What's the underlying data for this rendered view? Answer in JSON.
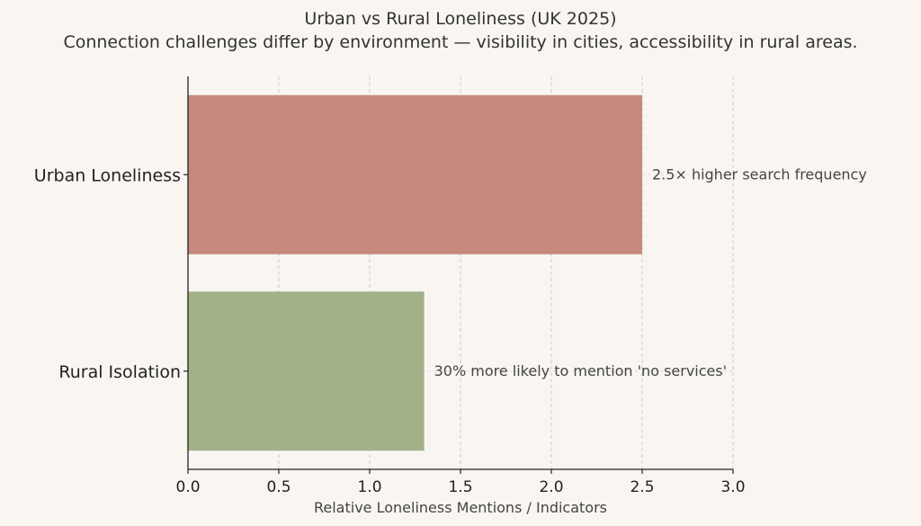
{
  "chart_data": {
    "type": "bar",
    "orientation": "horizontal",
    "title": "Urban vs Rural Loneliness (UK 2025)",
    "subtitle": "Connection challenges differ by environment — visibility in cities, accessibility in rural areas.",
    "xlabel": "Relative Loneliness Mentions / Indicators",
    "ylabel": "",
    "xlim": [
      0,
      3.0
    ],
    "xticks": [
      "0.0",
      "0.5",
      "1.0",
      "1.5",
      "2.0",
      "2.5",
      "3.0"
    ],
    "grid": "x-dashed",
    "categories": [
      "Urban Loneliness",
      "Rural Isolation"
    ],
    "values": [
      2.5,
      1.3
    ],
    "colors": [
      "#c58a7d",
      "#a3b18a"
    ],
    "annotations": [
      "2.5× higher search frequency",
      "30% more likely to mention 'no services'"
    ]
  }
}
